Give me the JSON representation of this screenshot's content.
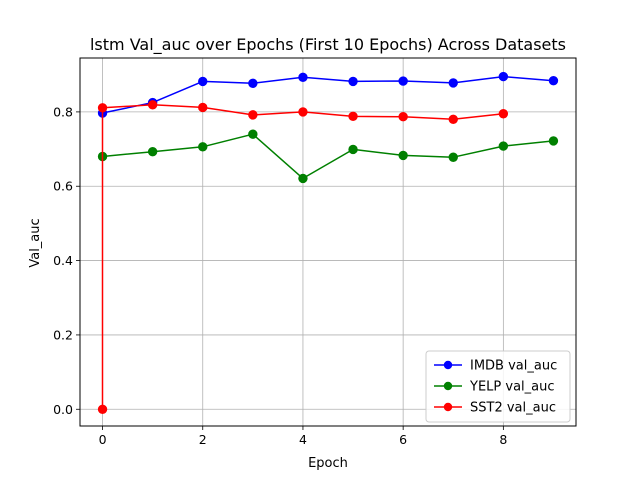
{
  "chart_data": {
    "type": "line",
    "title": "lstm Val_auc over Epochs (First 10 Epochs) Across Datasets",
    "xlabel": "Epoch",
    "ylabel": "Val_auc",
    "xlim": [
      -0.45,
      9.45
    ],
    "ylim": [
      -0.045,
      0.945
    ],
    "xticks": [
      0,
      2,
      4,
      6,
      8
    ],
    "yticks": [
      0.0,
      0.2,
      0.4,
      0.6,
      0.8
    ],
    "ytick_labels": [
      "0.0",
      "0.2",
      "0.4",
      "0.6",
      "0.8"
    ],
    "grid": true,
    "legend_position": "lower-right",
    "series": [
      {
        "name": "IMDB val_auc",
        "color": "#0000ff",
        "x": [
          0,
          1,
          2,
          3,
          4,
          5,
          6,
          7,
          8,
          9
        ],
        "values": [
          0.797,
          0.825,
          0.882,
          0.877,
          0.893,
          0.882,
          0.883,
          0.878,
          0.895,
          0.884
        ]
      },
      {
        "name": "YELP val_auc",
        "color": "#008000",
        "x": [
          0,
          1,
          2,
          3,
          4,
          5,
          6,
          7,
          8,
          9
        ],
        "values": [
          0.68,
          0.693,
          0.706,
          0.74,
          0.621,
          0.699,
          0.683,
          0.678,
          0.708,
          0.722
        ]
      },
      {
        "name": "SST2 val_auc",
        "color": "#ff0000",
        "x": [
          0,
          0,
          1,
          2,
          3,
          4,
          5,
          6,
          7,
          8
        ],
        "values": [
          0.0,
          0.811,
          0.819,
          0.812,
          0.792,
          0.8,
          0.788,
          0.787,
          0.78,
          0.795
        ]
      }
    ]
  }
}
